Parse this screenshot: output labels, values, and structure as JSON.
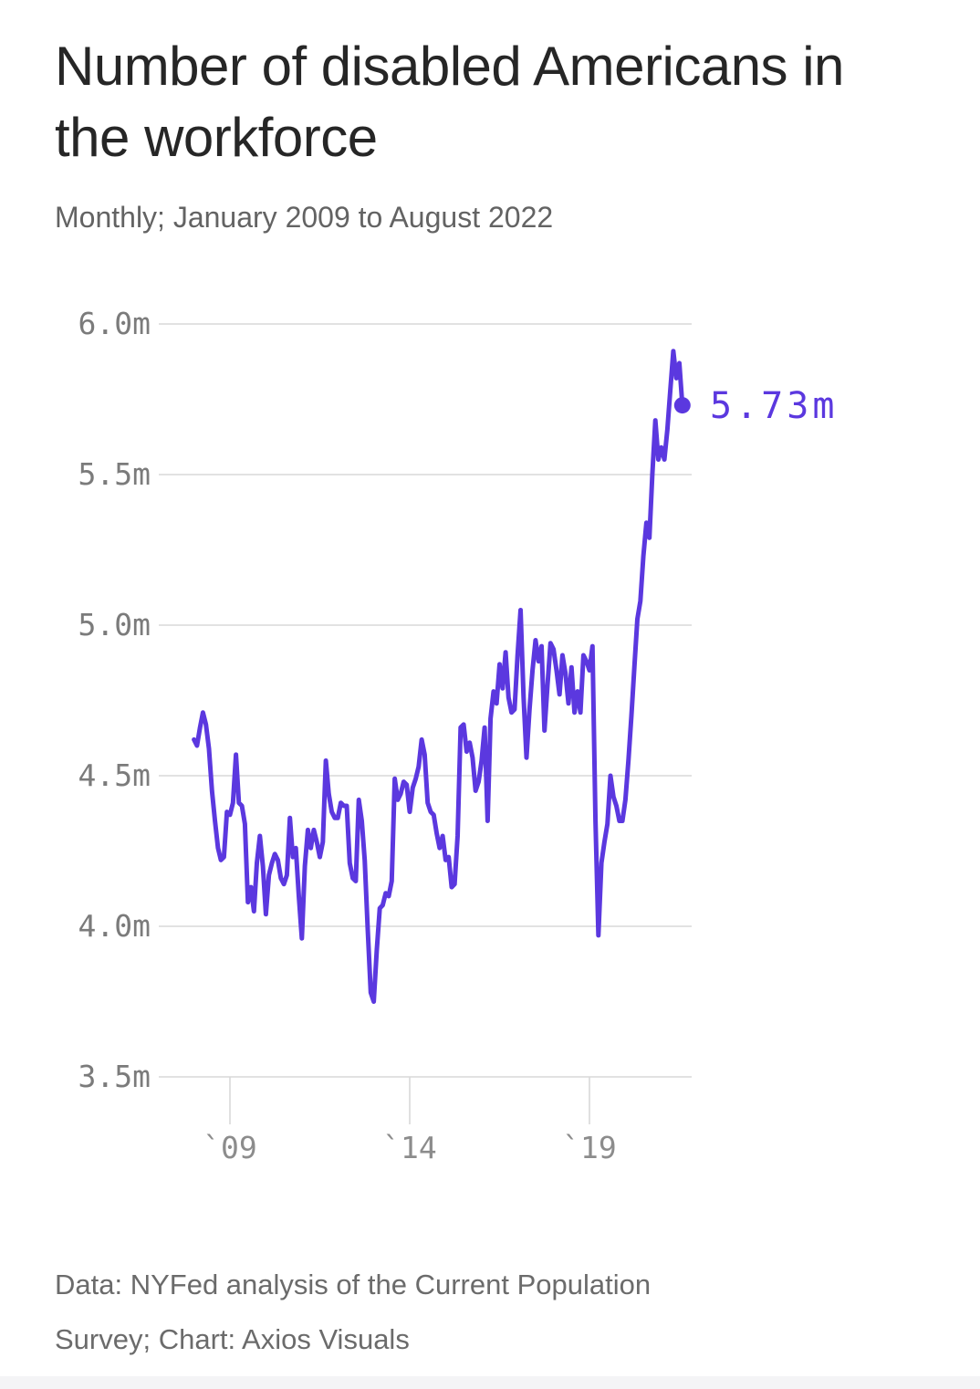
{
  "header": {
    "title": "Number of disabled Americans in the workforce",
    "title_lines": [
      "Number of disabled Americans in",
      "the workforce"
    ],
    "subtitle": "Monthly; January 2009 to August 2022"
  },
  "chart_data": {
    "type": "line",
    "title": "Number of disabled Americans in the workforce",
    "subtitle": "Monthly; January 2009 to August 2022",
    "frequency": "monthly",
    "x_start": "2009-01",
    "x_end": "2022-08",
    "unit": "millions of people",
    "ylim": [
      3.5,
      6.0
    ],
    "grid": true,
    "legend": false,
    "y_ticks": [
      {
        "value": 6.0,
        "label": "6.0m"
      },
      {
        "value": 5.5,
        "label": "5.5m"
      },
      {
        "value": 5.0,
        "label": "5.0m"
      },
      {
        "value": 4.5,
        "label": "4.5m"
      },
      {
        "value": 4.0,
        "label": "4.0m"
      },
      {
        "value": 3.5,
        "label": "3.5m"
      }
    ],
    "x_ticks": [
      {
        "month_index": 12,
        "label": "`09"
      },
      {
        "month_index": 72,
        "label": "`14"
      },
      {
        "month_index": 132,
        "label": "`19"
      }
    ],
    "series": [
      {
        "name": "Disabled Americans in the workforce (millions)",
        "values": [
          4.62,
          4.6,
          4.66,
          4.71,
          4.67,
          4.59,
          4.45,
          4.35,
          4.26,
          4.22,
          4.23,
          4.38,
          4.37,
          4.41,
          4.57,
          4.41,
          4.4,
          4.34,
          4.08,
          4.13,
          4.05,
          4.21,
          4.3,
          4.2,
          4.04,
          4.17,
          4.21,
          4.24,
          4.22,
          4.16,
          4.14,
          4.17,
          4.36,
          4.23,
          4.26,
          4.1,
          3.96,
          4.2,
          4.32,
          4.26,
          4.32,
          4.28,
          4.23,
          4.28,
          4.55,
          4.44,
          4.38,
          4.36,
          4.36,
          4.41,
          4.4,
          4.4,
          4.21,
          4.16,
          4.15,
          4.42,
          4.35,
          4.22,
          3.99,
          3.78,
          3.75,
          3.92,
          4.06,
          4.07,
          4.11,
          4.1,
          4.15,
          4.49,
          4.42,
          4.44,
          4.48,
          4.47,
          4.38,
          4.46,
          4.49,
          4.53,
          4.62,
          4.57,
          4.41,
          4.38,
          4.37,
          4.31,
          4.26,
          4.3,
          4.22,
          4.23,
          4.13,
          4.14,
          4.3,
          4.66,
          4.67,
          4.58,
          4.61,
          4.56,
          4.45,
          4.48,
          4.55,
          4.66,
          4.35,
          4.69,
          4.78,
          4.74,
          4.87,
          4.79,
          4.91,
          4.76,
          4.71,
          4.72,
          4.9,
          5.05,
          4.76,
          4.56,
          4.72,
          4.85,
          4.95,
          4.88,
          4.93,
          4.65,
          4.8,
          4.94,
          4.92,
          4.85,
          4.77,
          4.9,
          4.84,
          4.74,
          4.86,
          4.71,
          4.78,
          4.71,
          4.9,
          4.88,
          4.85,
          4.93,
          4.35,
          3.97,
          4.21,
          4.28,
          4.34,
          4.5,
          4.43,
          4.4,
          4.35,
          4.35,
          4.42,
          4.55,
          4.7,
          4.86,
          5.02,
          5.08,
          5.23,
          5.34,
          5.29,
          5.5,
          5.68,
          5.55,
          5.59,
          5.55,
          5.65,
          5.78,
          5.91,
          5.82,
          5.87,
          5.73
        ]
      }
    ],
    "end_point": {
      "value": 5.73,
      "label": "5.73m"
    },
    "colors": {
      "line": "#5b38df",
      "gridline": "#d8d8d8",
      "tick": "#d9d9d9"
    }
  },
  "footer": {
    "source": "Data: NYFed analysis of the Current Population Survey; Chart: Axios Visuals",
    "source_lines": [
      "Data: NYFed analysis of the Current Population",
      "Survey; Chart: Axios Visuals"
    ]
  }
}
